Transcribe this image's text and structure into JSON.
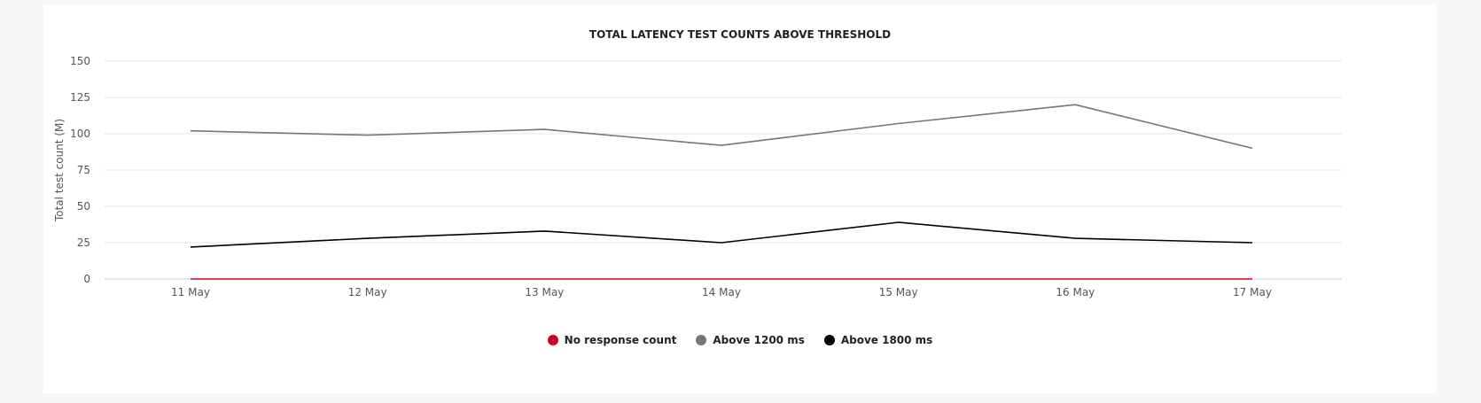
{
  "chart_data": {
    "type": "line",
    "title": "TOTAL LATENCY TEST COUNTS ABOVE THRESHOLD",
    "xlabel": "",
    "ylabel": "Total test count (M)",
    "categories": [
      "11 May",
      "12 May",
      "13 May",
      "14 May",
      "15 May",
      "16 May",
      "17 May"
    ],
    "ylim": [
      0,
      150
    ],
    "yticks": [
      0,
      25,
      50,
      75,
      100,
      125,
      150
    ],
    "grid": true,
    "legend_position": "bottom-center",
    "series": [
      {
        "name": "No response count",
        "color": "#d0021b",
        "values": [
          0,
          0,
          0,
          0,
          0,
          0,
          0
        ]
      },
      {
        "name": "Above 1200 ms",
        "color": "#767676",
        "values": [
          102,
          99,
          103,
          92,
          107,
          120,
          90
        ]
      },
      {
        "name": "Above 1800 ms",
        "color": "#000000",
        "values": [
          22,
          28,
          33,
          25,
          39,
          28,
          25
        ]
      }
    ]
  }
}
